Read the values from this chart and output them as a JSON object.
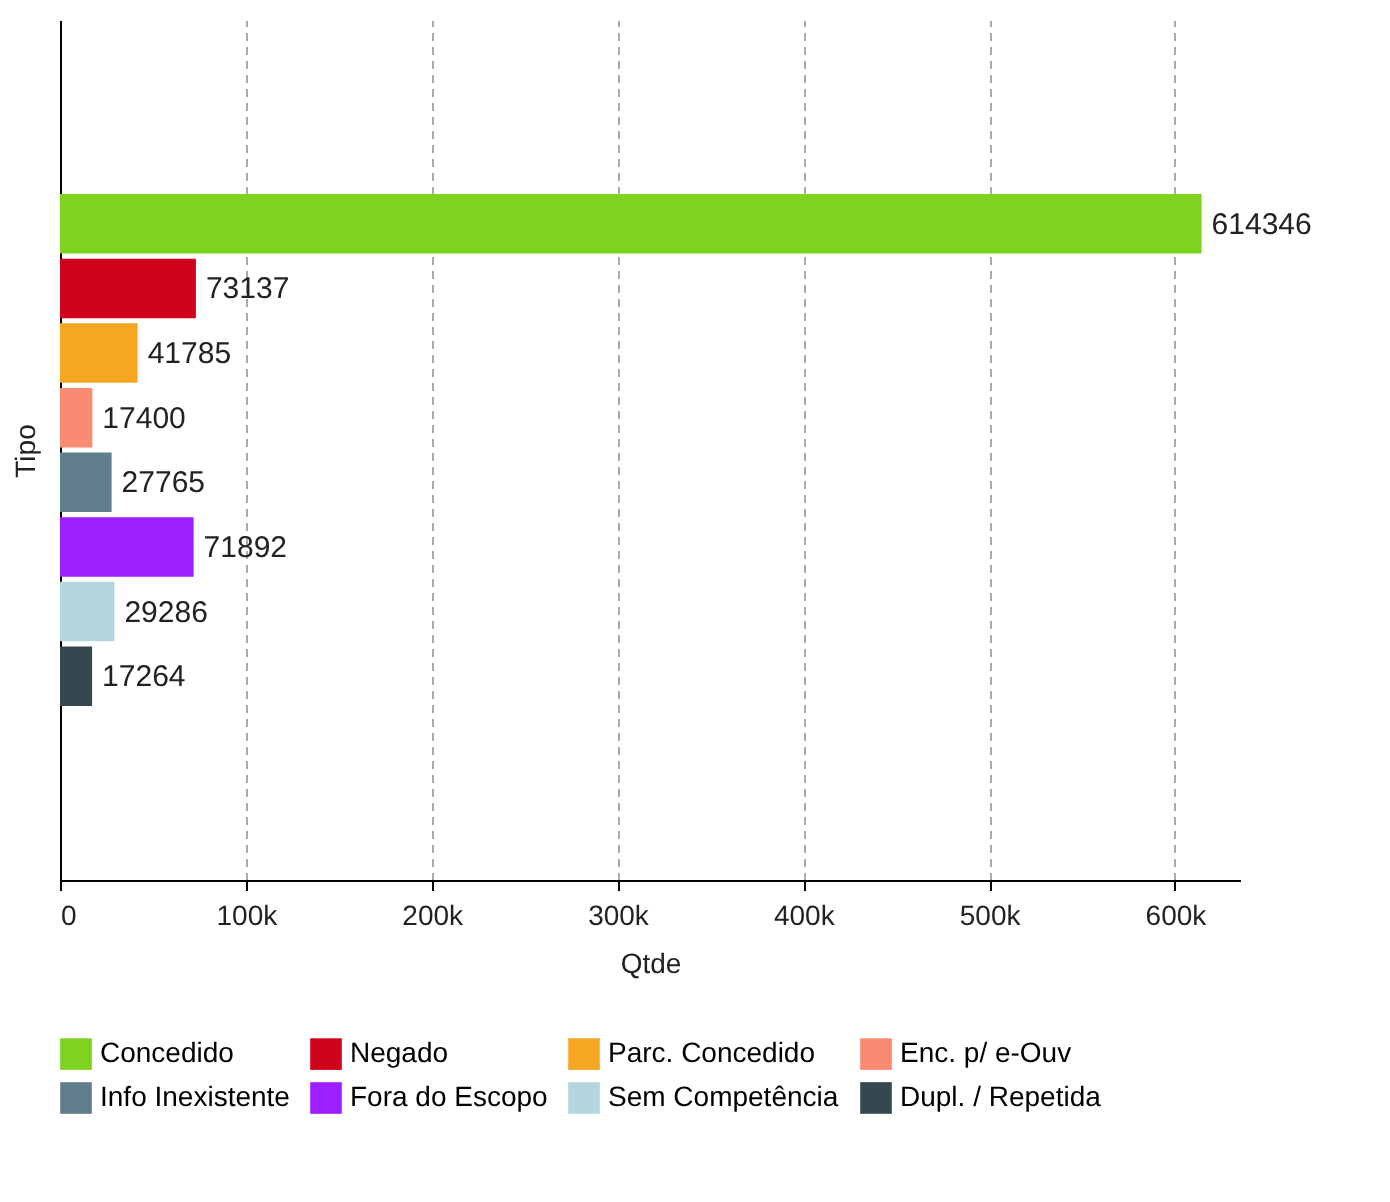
{
  "chart_data": {
    "type": "bar",
    "orientation": "horizontal",
    "xlabel": "Qtde",
    "ylabel": "Tipo",
    "categories": [
      null
    ],
    "series": [
      {
        "name": "Concedido",
        "color": "#7ed321",
        "values": [
          614346
        ]
      },
      {
        "name": "Negado",
        "color": "#d0021b",
        "values": [
          73137
        ]
      },
      {
        "name": "Parc. Concedido",
        "color": "#f5a623",
        "values": [
          41785
        ]
      },
      {
        "name": "Enc. p/ e-Ouv",
        "color": "#f98b72",
        "values": [
          17400
        ]
      },
      {
        "name": "Info Inexistente",
        "color": "#607d8b",
        "values": [
          27765
        ]
      },
      {
        "name": "Fora do Escopo",
        "color": "#9b1fff",
        "values": [
          71892
        ]
      },
      {
        "name": "Sem Competência",
        "color": "#b3d6de",
        "values": [
          29286
        ]
      },
      {
        "name": "Dupl. / Repetida",
        "color": "#37474f",
        "values": [
          17264
        ]
      }
    ],
    "xlim": [
      0,
      635000
    ],
    "xticks": [
      0,
      {
        "value": 100000,
        "label": "100k"
      },
      {
        "value": 200000,
        "label": "200k"
      },
      {
        "value": 300000,
        "label": "300k"
      },
      {
        "value": 400000,
        "label": "400k"
      },
      {
        "value": 500000,
        "label": "500k"
      },
      {
        "value": 600000,
        "label": "600k"
      }
    ],
    "grid": "x",
    "legend": "bottom",
    "data_labels": true
  }
}
